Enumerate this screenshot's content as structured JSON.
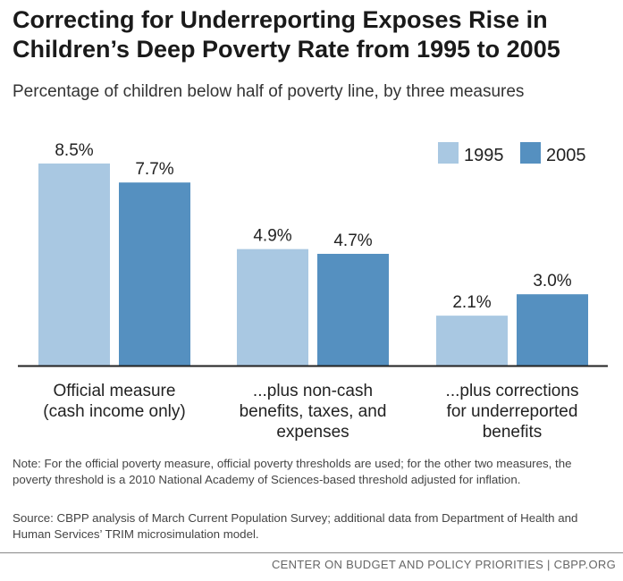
{
  "header": {
    "title": "Correcting for Underreporting Exposes Rise in Children’s Deep Poverty Rate from 1995 to 2005",
    "subtitle": "Percentage of children below half of poverty line, by three measures"
  },
  "chart_data": {
    "type": "bar",
    "categories": [
      [
        "Official measure",
        "(cash income only)"
      ],
      [
        "...plus non-cash",
        "benefits, taxes, and",
        "expenses"
      ],
      [
        "...plus corrections",
        "for underreported",
        "benefits"
      ]
    ],
    "series": [
      {
        "name": "1995",
        "values": [
          8.5,
          4.9,
          2.1
        ],
        "labels": [
          "8.5%",
          "4.9%",
          "2.1%"
        ],
        "color": "#a9c8e2"
      },
      {
        "name": "2005",
        "values": [
          7.7,
          4.7,
          3.0
        ],
        "labels": [
          "7.7%",
          "4.7%",
          "3.0%"
        ],
        "color": "#5590c0"
      }
    ],
    "ylim": [
      0,
      10
    ],
    "grid": false,
    "legend": "top-right"
  },
  "notes": {
    "note": "Note: For the official poverty measure, official poverty thresholds are used; for the other two measures, the poverty threshold is a 2010 National Academy of Sciences-based threshold adjusted for inflation.",
    "source": "Source: CBPP analysis of March Current Population Survey; additional data from Department of Health and Human Services’ TRIM microsimulation model."
  },
  "footer": {
    "credit": "CENTER ON BUDGET AND POLICY PRIORITIES | CBPP.ORG"
  }
}
